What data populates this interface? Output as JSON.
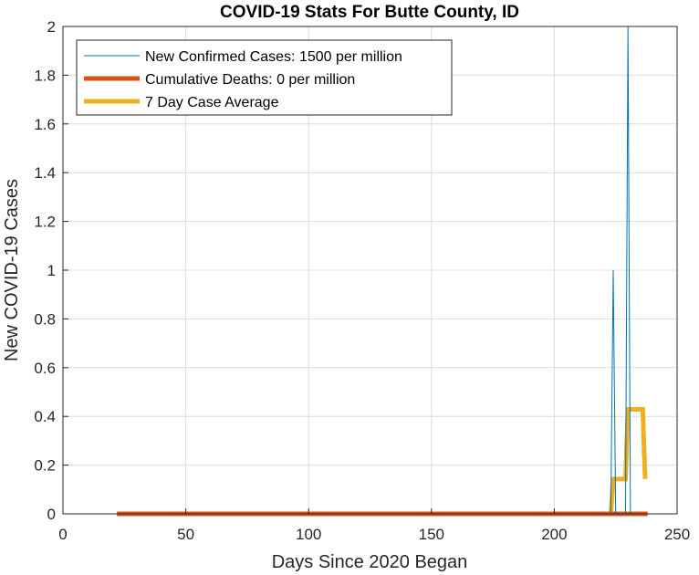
{
  "chart_data": {
    "type": "line",
    "title": "COVID-19 Stats For Butte County, ID",
    "xlabel": "Days Since 2020 Began",
    "ylabel": "New COVID-19 Cases",
    "xlim": [
      0,
      250
    ],
    "ylim": [
      0,
      2
    ],
    "xticks": [
      "0",
      "50",
      "100",
      "150",
      "200",
      "250"
    ],
    "yticks": [
      "0",
      "0.2",
      "0.4",
      "0.6",
      "0.8",
      "1",
      "1.2",
      "1.4",
      "1.6",
      "1.8",
      "2"
    ],
    "grid": true,
    "legend_position": "top-left",
    "series": [
      {
        "name": "New Confirmed Cases: 1500 per million",
        "color": "#0072BD",
        "line_width": "thin",
        "x": [
          22,
          223,
          224,
          225,
          229,
          230,
          231,
          232,
          238
        ],
        "y": [
          0,
          0,
          1,
          0,
          0,
          2,
          0,
          0,
          0
        ]
      },
      {
        "name": "Cumulative Deaths: 0 per million",
        "color": "#D95319",
        "line_width": "thick",
        "x": [
          22,
          238
        ],
        "y": [
          0,
          0
        ]
      },
      {
        "name": "7 Day Case Average",
        "color": "#EDB120",
        "line_width": "thick",
        "x": [
          22,
          223,
          224,
          229,
          230,
          231,
          236,
          237
        ],
        "y": [
          0,
          0,
          0.143,
          0.143,
          0.429,
          0.429,
          0.429,
          0.143
        ]
      }
    ]
  }
}
